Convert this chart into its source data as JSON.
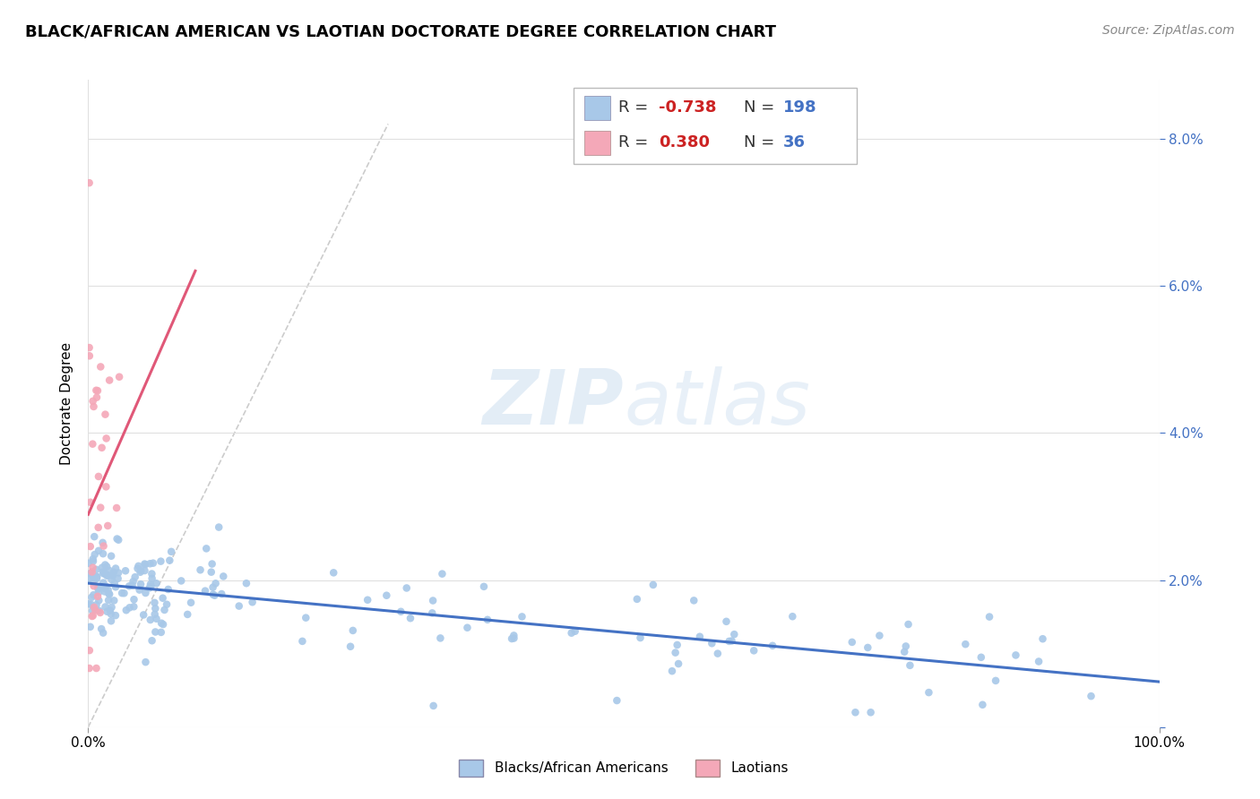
{
  "title": "BLACK/AFRICAN AMERICAN VS LAOTIAN DOCTORATE DEGREE CORRELATION CHART",
  "source_text": "Source: ZipAtlas.com",
  "ylabel": "Doctorate Degree",
  "yaxis_ticks": [
    0.0,
    0.02,
    0.04,
    0.06,
    0.08
  ],
  "yaxis_labels": [
    "",
    "2.0%",
    "4.0%",
    "6.0%",
    "8.0%"
  ],
  "xmin": 0.0,
  "xmax": 1.0,
  "ymin": 0.0,
  "ymax": 0.088,
  "blue_color": "#a8c8e8",
  "pink_color": "#f4a8b8",
  "blue_line_color": "#4472c4",
  "pink_line_color": "#e05878",
  "diag_color": "#cccccc",
  "legend_blue_R": "-0.738",
  "legend_blue_N": "198",
  "legend_pink_R": "0.380",
  "legend_pink_N": "36",
  "legend_label_blue": "Blacks/African Americans",
  "legend_label_pink": "Laotians",
  "title_fontsize": 13,
  "source_fontsize": 10,
  "axis_label_fontsize": 11,
  "legend_fontsize": 13
}
